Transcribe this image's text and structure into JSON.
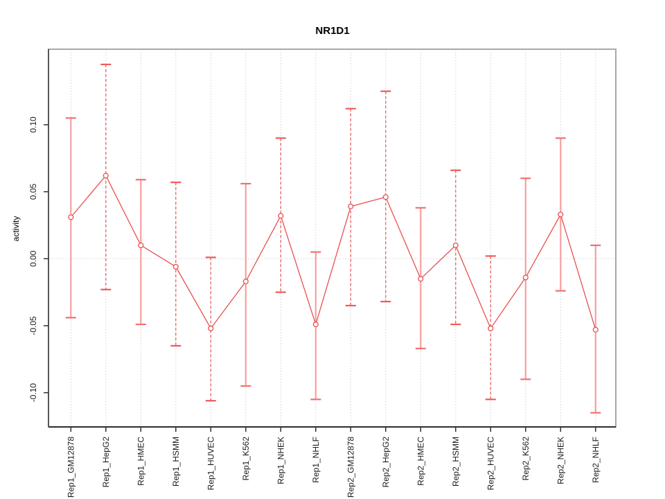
{
  "chart_data": {
    "type": "line",
    "title": "NR1D1",
    "xlabel": "",
    "ylabel": "activity",
    "legend": null,
    "grid": {
      "vertical_gridlines": "dotted light grey at every category tick, full height",
      "horizontal_zero_line": "dotted light grey at y = 0.00"
    },
    "ylim": [
      -0.12,
      0.155
    ],
    "yticks": [
      0.1,
      0.05,
      0.0,
      -0.05,
      -0.1
    ],
    "ytick_labels": [
      "0.10",
      "0.05",
      "0.00",
      "-0.05",
      "-0.10"
    ],
    "categories": [
      "Rep1_GM12878",
      "Rep1_HepG2",
      "Rep1_HMEC",
      "Rep1_HSMM",
      "Rep1_HUVEC",
      "Rep1_K562",
      "Rep1_NHEK",
      "Rep1_NHLF",
      "Rep2_GM12878",
      "Rep2_HepG2",
      "Rep2_HMEC",
      "Rep2_HSMM",
      "Rep2_HUVEC",
      "Rep2_K562",
      "Rep2_NHEK",
      "Rep2_NHLF"
    ],
    "series": [
      {
        "name": "activity",
        "marker": "open-circle",
        "values": [
          0.031,
          0.062,
          0.01,
          -0.006,
          -0.052,
          -0.017,
          0.032,
          -0.049,
          0.039,
          0.046,
          -0.015,
          0.01,
          -0.052,
          -0.014,
          0.033,
          -0.053
        ],
        "error_high": [
          0.105,
          0.145,
          0.059,
          0.057,
          0.001,
          0.056,
          0.09,
          0.005,
          0.112,
          0.125,
          0.038,
          0.066,
          0.002,
          0.06,
          0.09,
          0.01
        ],
        "error_low": [
          -0.044,
          -0.023,
          -0.049,
          -0.065,
          -0.106,
          -0.095,
          -0.025,
          -0.105,
          -0.035,
          -0.032,
          -0.067,
          -0.049,
          -0.105,
          -0.09,
          -0.024,
          -0.115
        ],
        "stem_styles": [
          "solid",
          "dashed",
          "solid",
          "dashed",
          "dashed",
          "solid",
          "dashed",
          "solid",
          "dashed",
          "dashed",
          "solid",
          "dashed",
          "dashed",
          "solid",
          "solid",
          "solid"
        ]
      }
    ],
    "colors": {
      "line": "#e94f4f",
      "point_stroke": "#e94f4f",
      "point_fill": "#ffffff",
      "stem_solid": "#f89f9f",
      "stem_dashed": "#e95252",
      "cap_solid": "#f republican",
      "cap": "#f17070",
      "grid": "#d2d2d2",
      "box": "#a8a8a8",
      "axis": "#2e2e2e",
      "text": "#000000"
    },
    "legend_position": "none"
  }
}
